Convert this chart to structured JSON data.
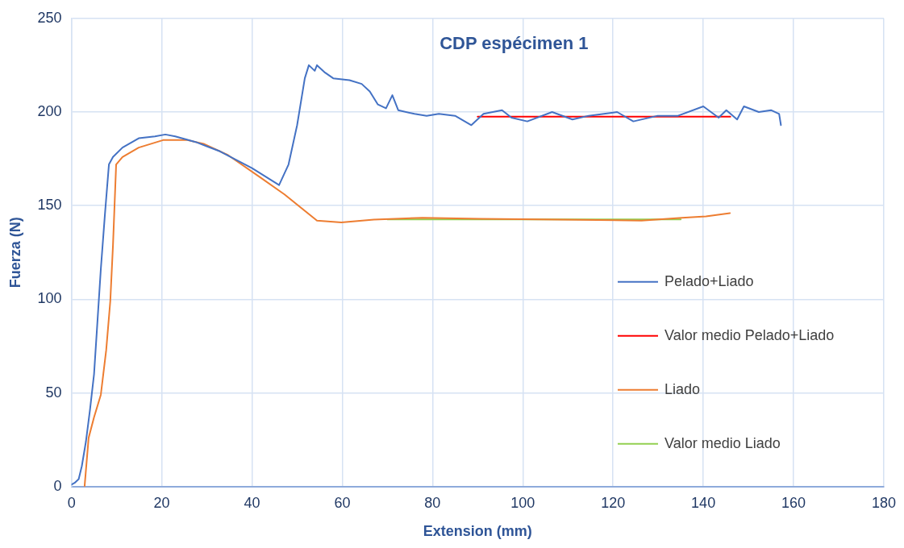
{
  "chart_data": {
    "type": "line",
    "title": "CDP espécimen 1",
    "xlabel": "Extension (mm)",
    "ylabel": "Fuerza (N)",
    "xlim": [
      0,
      180
    ],
    "xticks": [
      0,
      20,
      40,
      60,
      80,
      100,
      120,
      140,
      160,
      180
    ],
    "ylim": [
      0,
      250
    ],
    "yticks": [
      0,
      50,
      100,
      150,
      200,
      250
    ],
    "grid": true,
    "legend": "right",
    "marker": "none",
    "line_style": "solid",
    "series": [
      {
        "name": "Pelado+Liado",
        "color": "#4472c4",
        "x": [
          0,
          0.7,
          1.6,
          2.3,
          3.2,
          4.1,
          5,
          5.7,
          6.5,
          7.4,
          8.3,
          9.2,
          11.3,
          14.9,
          18.5,
          20.8,
          23,
          27.5,
          32.9,
          40,
          46,
          48.1,
          50,
          51.7,
          52.6,
          53.9,
          54.4,
          56.2,
          58,
          61.6,
          64.3,
          66.1,
          67.9,
          69.7,
          71.1,
          72.4,
          76,
          78.7,
          81.4,
          85,
          88.6,
          91.3,
          95.4,
          97.5,
          101,
          106.5,
          111,
          114.6,
          120.9,
          124.5,
          129.9,
          134.4,
          140,
          143.4,
          145.1,
          147.5,
          149,
          152.3,
          155,
          156.8,
          157.2
        ],
        "values": [
          1,
          2,
          4,
          11,
          24,
          41,
          60,
          86,
          116,
          145,
          172,
          176,
          181,
          186,
          187,
          188,
          187,
          184,
          179,
          170,
          161,
          172,
          193,
          218,
          225,
          222,
          225,
          221,
          218,
          217,
          215,
          211,
          204,
          202,
          209,
          201,
          199,
          198,
          199,
          198,
          193,
          199,
          201,
          197,
          195,
          200,
          196,
          198,
          200,
          195,
          198,
          198,
          203,
          197,
          201,
          196,
          203,
          200,
          201,
          199,
          193
        ]
      },
      {
        "name": "Valor medio Pelado+Liado",
        "color": "#ff0000",
        "x": [
          90,
          146
        ],
        "values": [
          197.5,
          197.5
        ]
      },
      {
        "name": "Liado",
        "color": "#ed7d31",
        "x": [
          2.9,
          3.8,
          5,
          6.5,
          7.7,
          8.6,
          9.2,
          9.9,
          11.3,
          14.9,
          20.3,
          25.7,
          29.3,
          34.7,
          41.9,
          47.2,
          54.4,
          59.8,
          67,
          77.8,
          90.4,
          108.3,
          126.3,
          135.3,
          140.6,
          145.9
        ],
        "values": [
          0,
          26,
          37,
          49,
          73,
          99,
          129,
          172,
          176,
          181,
          185,
          185,
          183,
          177,
          165,
          156,
          142,
          141,
          142.6,
          143.5,
          143,
          142.6,
          142,
          143.5,
          144.3,
          146
        ]
      },
      {
        "name": "Valor medio Liado",
        "color": "#92d050",
        "x": [
          70,
          135
        ],
        "values": [
          142.7,
          142.7
        ]
      }
    ]
  }
}
